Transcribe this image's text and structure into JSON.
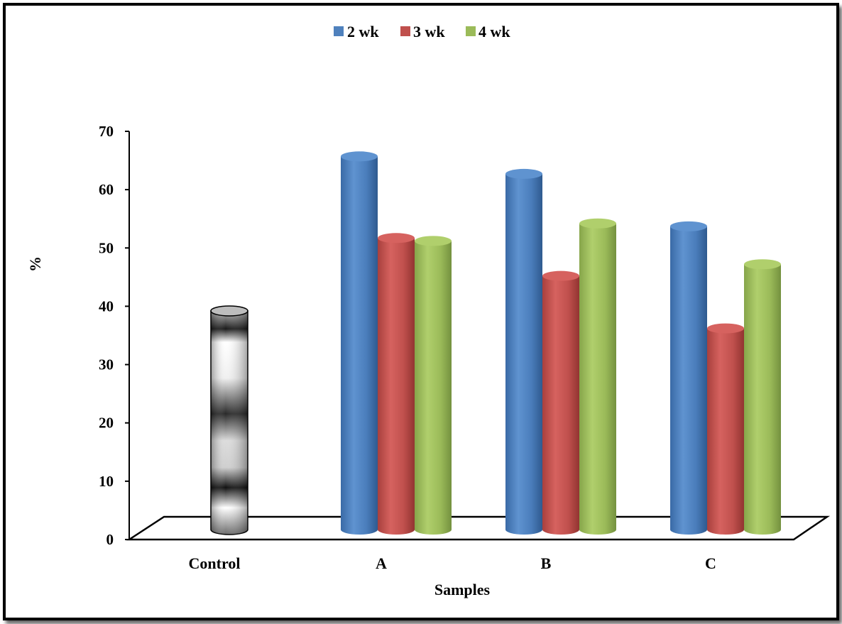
{
  "chart_data": {
    "type": "bar",
    "style": "3d-cylinder",
    "categories": [
      "Control",
      "A",
      "B",
      "C"
    ],
    "series": [
      {
        "name": "2 wk",
        "color": "#4F81BD",
        "values": [
          null,
          64,
          61,
          52
        ]
      },
      {
        "name": "3 wk",
        "color": "#C0504D",
        "values": [
          null,
          50,
          43.5,
          34.5
        ]
      },
      {
        "name": "4 wk",
        "color": "#9BBB59",
        "values": [
          null,
          49.5,
          52.5,
          45.5
        ]
      }
    ],
    "control": {
      "category": "Control",
      "value": 37.5,
      "fill": "grayscale-banded"
    },
    "xlabel": "Samples",
    "ylabel": "%",
    "ylim": [
      0,
      70
    ],
    "yticks": [
      "0",
      "10",
      "20",
      "30",
      "40",
      "50",
      "60",
      "70"
    ],
    "legend_position": "top-center",
    "grid": false
  }
}
